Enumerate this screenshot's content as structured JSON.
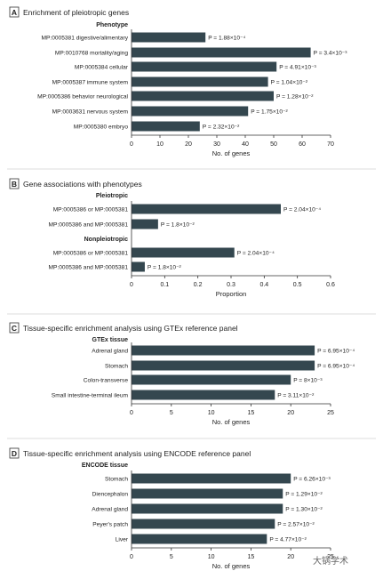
{
  "watermark": "大锅学术",
  "chart_data": [
    {
      "type": "bar",
      "panel": "A",
      "title": "Enrichment of pleiotropic genes",
      "group_header": "Phenotype",
      "categories": [
        "MP:0005381 digestive/alimentary",
        "MP:0010768 mortality/aging",
        "MP:0005384 cellular",
        "MP:0005387 immune system",
        "MP:0005386 behavior neurological",
        "MP:0003631 nervous system",
        "MP:0005380 embryo"
      ],
      "values": [
        26,
        63,
        51,
        48,
        50,
        41,
        24
      ],
      "annotations": [
        "P = 1.88×10⁻⁴",
        "P = 3.4×10⁻³",
        "P = 4.91×10⁻³",
        "P = 1.04×10⁻²",
        "P = 1.28×10⁻²",
        "P = 1.75×10⁻²",
        "P = 2.32×10⁻²"
      ],
      "xlabel": "No. of genes",
      "xlim": [
        0,
        70
      ],
      "xticks": [
        "0",
        "10",
        "20",
        "30",
        "40",
        "50",
        "60",
        "70"
      ]
    },
    {
      "type": "bar",
      "panel": "B",
      "title": "Gene associations with phenotypes",
      "groups": [
        {
          "header": "Pleiotropic",
          "categories": [
            "MP:0005386 or MP:0005381",
            "MP:0005386 and MP:0005381"
          ],
          "values": [
            0.45,
            0.08
          ],
          "annotations": [
            "P = 2.04×10⁻⁴",
            "P = 1.8×10⁻²"
          ]
        },
        {
          "header": "Nonpleiotropic",
          "categories": [
            "MP:0005386 or MP:0005381",
            "MP:0005386 and MP:0005381"
          ],
          "values": [
            0.31,
            0.04
          ],
          "annotations": [
            "P = 2.04×10⁻⁴",
            "P = 1.8×10⁻²"
          ]
        }
      ],
      "xlabel": "Proportion",
      "xlim": [
        0,
        0.6
      ],
      "xticks": [
        "0",
        "0.1",
        "0.2",
        "0.3",
        "0.4",
        "0.5",
        "0.6"
      ]
    },
    {
      "type": "bar",
      "panel": "C",
      "title": "Tissue-specific enrichment analysis using GTEx reference panel",
      "group_header": "GTEx tissue",
      "categories": [
        "Adrenal gland",
        "Stomach",
        "Colon-transverse",
        "Small intestine-terminal ileum"
      ],
      "values": [
        23,
        23,
        20,
        18
      ],
      "annotations": [
        "P = 6.95×10⁻⁴",
        "P = 6.95×10⁻⁴",
        "P = 8×10⁻³",
        "P = 3.11×10⁻²"
      ],
      "xlabel": "No. of genes",
      "xlim": [
        0,
        25
      ],
      "xticks": [
        "0",
        "5",
        "10",
        "15",
        "20",
        "25"
      ]
    },
    {
      "type": "bar",
      "panel": "D",
      "title": "Tissue-specific enrichment analysis using ENCODE reference panel",
      "group_header": "ENCODE tissue",
      "categories": [
        "Stomach",
        "Diencephalon",
        "Adrenal gland",
        "Peyer's patch",
        "Liver"
      ],
      "values": [
        20,
        19,
        19,
        18,
        17
      ],
      "annotations": [
        "P = 6.26×10⁻³",
        "P = 1.29×10⁻²",
        "P = 1.30×10⁻²",
        "P = 2.57×10⁻²",
        "P = 4.77×10⁻²"
      ],
      "xlabel": "No. of genes",
      "xlim": [
        0,
        25
      ],
      "xticks": [
        "0",
        "5",
        "10",
        "15",
        "20",
        "25"
      ]
    }
  ]
}
